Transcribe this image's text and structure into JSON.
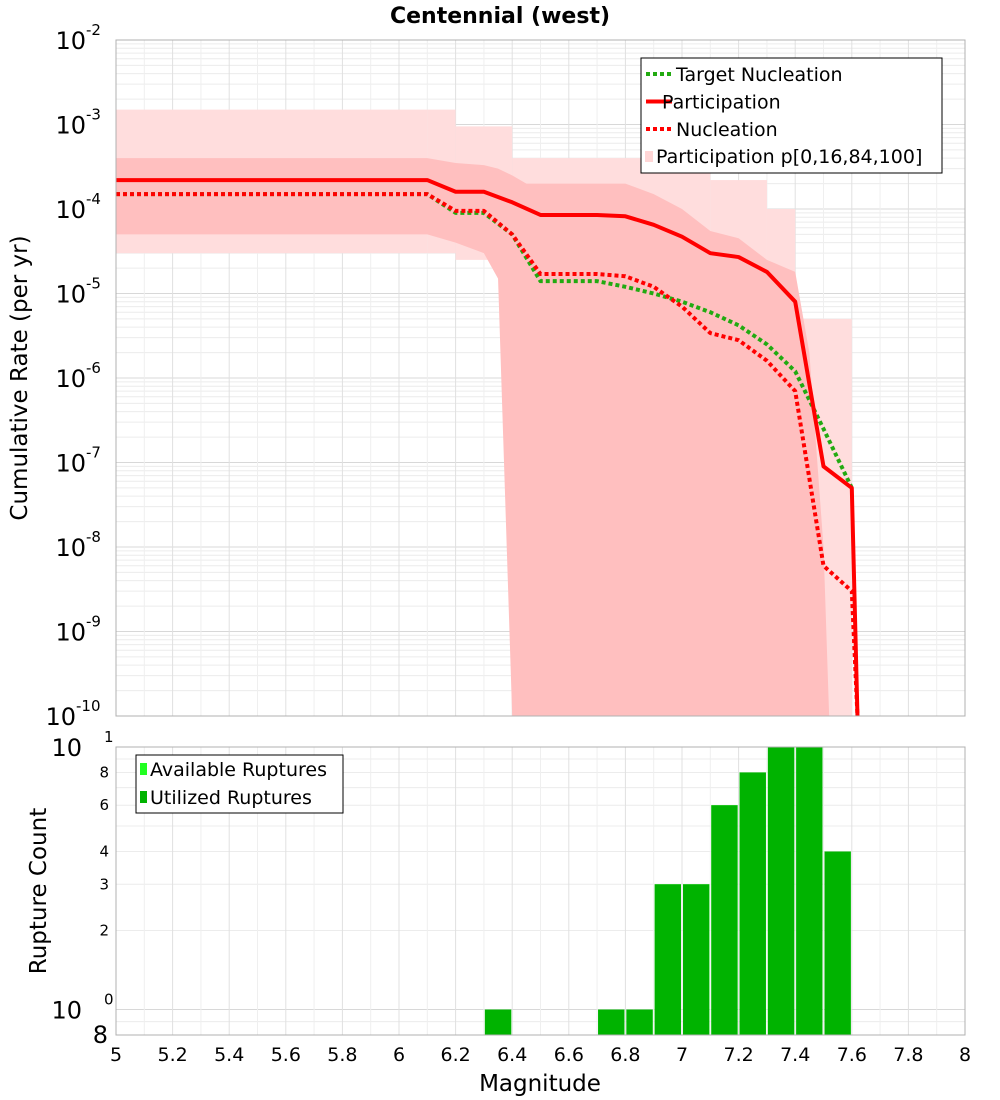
{
  "chart_data": [
    {
      "type": "line",
      "title": "Centennial (west)",
      "ylabel": "Cumulative Rate (per yr)",
      "xlabel": "",
      "xlim": [
        5,
        8
      ],
      "ylim": [
        1e-10,
        0.01
      ],
      "yscale": "log",
      "grid": true,
      "legend_position": "top-right",
      "y_tick_exponents": [
        "-10",
        "-9",
        "-8",
        "-7",
        "-6",
        "-5",
        "-4",
        "-3",
        "-2"
      ],
      "y_tick_base": "10",
      "x": [
        5.0,
        5.1,
        5.2,
        5.3,
        5.4,
        5.5,
        5.6,
        5.7,
        5.8,
        5.9,
        6.0,
        6.1,
        6.2,
        6.3,
        6.4,
        6.5,
        6.6,
        6.7,
        6.8,
        6.9,
        7.0,
        7.1,
        7.2,
        7.3,
        7.4,
        7.5,
        7.6,
        7.62
      ],
      "series": [
        {
          "name": "Target Nucleation",
          "style": "dotted",
          "color": "#22aa11",
          "values": [
            0.00015,
            0.00015,
            0.00015,
            0.00015,
            0.00015,
            0.00015,
            0.00015,
            0.00015,
            0.00015,
            0.00015,
            0.00015,
            0.00015,
            9e-05,
            9e-05,
            5e-05,
            1.4e-05,
            1.4e-05,
            1.4e-05,
            1.2e-05,
            1e-05,
            8e-06,
            6e-06,
            4.2e-06,
            2.5e-06,
            1.2e-06,
            2.5e-07,
            5e-08,
            null
          ]
        },
        {
          "name": "Participation",
          "style": "solid",
          "color": "#ff0000",
          "values": [
            0.00022,
            0.00022,
            0.00022,
            0.00022,
            0.00022,
            0.00022,
            0.00022,
            0.00022,
            0.00022,
            0.00022,
            0.00022,
            0.00022,
            0.00016,
            0.00016,
            0.00012,
            8.5e-05,
            8.5e-05,
            8.5e-05,
            8.2e-05,
            6.5e-05,
            4.7e-05,
            3e-05,
            2.7e-05,
            1.8e-05,
            8e-06,
            9e-08,
            5e-08,
            1e-10
          ]
        },
        {
          "name": "Nucleation",
          "style": "dotted",
          "color": "#ff0000",
          "values": [
            0.00015,
            0.00015,
            0.00015,
            0.00015,
            0.00015,
            0.00015,
            0.00015,
            0.00015,
            0.00015,
            0.00015,
            0.00015,
            0.00015,
            9.5e-05,
            9.5e-05,
            5e-05,
            1.7e-05,
            1.7e-05,
            1.7e-05,
            1.6e-05,
            1.2e-05,
            7e-06,
            3.4e-06,
            2.8e-06,
            1.6e-06,
            7e-07,
            6e-09,
            3e-09,
            1e-10
          ]
        }
      ],
      "bands": {
        "name": "Participation p[0,16,84,100]",
        "outer_color": "#ffdddd",
        "inner_color": "#ffbfbf",
        "outer": [
          {
            "x0": 5.0,
            "x1": 6.1,
            "low": 3e-05,
            "high": 0.0015
          },
          {
            "x0": 6.1,
            "x1": 6.2,
            "low": 3e-05,
            "high": 0.0015
          },
          {
            "x0": 6.2,
            "x1": 6.4,
            "low": 2.5e-05,
            "high": 0.00095
          },
          {
            "x0": 6.4,
            "x1": 6.5,
            "low": 1e-10,
            "high": 0.0004
          },
          {
            "x0": 6.5,
            "x1": 7.1,
            "low": 1e-10,
            "high": 0.0004
          },
          {
            "x0": 7.1,
            "x1": 7.3,
            "low": 1e-10,
            "high": 0.00022
          },
          {
            "x0": 7.3,
            "x1": 7.4,
            "low": 1e-10,
            "high": 0.0001
          },
          {
            "x0": 7.4,
            "x1": 7.5,
            "low": 1e-10,
            "high": 5e-06
          },
          {
            "x0": 7.5,
            "x1": 7.6,
            "low": 1e-10,
            "high": 5e-06
          }
        ],
        "inner_x": [
          5.0,
          6.1,
          6.2,
          6.3,
          6.35,
          6.4,
          6.45,
          6.5,
          6.8,
          6.9,
          7.0,
          7.1,
          7.2,
          7.3,
          7.4,
          7.45,
          7.5,
          7.52
        ],
        "inner_high": [
          0.0004,
          0.0004,
          0.00035,
          0.00033,
          0.0003,
          0.00025,
          0.0002,
          0.0002,
          0.0002,
          0.00015,
          0.0001,
          5.5e-05,
          4.5e-05,
          2.5e-05,
          1.8e-05,
          2e-06,
          1e-08,
          1e-10
        ],
        "inner_low": [
          5e-05,
          5e-05,
          4e-05,
          3e-05,
          1.5e-05,
          1e-10,
          1e-10,
          1e-10,
          1e-10,
          1e-10,
          1e-10,
          1e-10,
          1e-10,
          1e-10,
          1e-10,
          1e-10,
          1e-10,
          1e-10
        ]
      }
    },
    {
      "type": "bar",
      "ylabel": "Rupture Count",
      "xlabel": "Magnitude",
      "xlim": [
        5,
        8
      ],
      "ylim": [
        0.8,
        10
      ],
      "yscale": "log",
      "grid": true,
      "legend_position": "top-left",
      "y_major_labels": [
        {
          "base": "10",
          "exp": "0",
          "value": 1
        },
        {
          "base": "10",
          "exp": "1",
          "value": 10
        }
      ],
      "y_minor_labels": [
        "8",
        "2",
        "3",
        "4",
        "6",
        "8"
      ],
      "y_minor_values": [
        0.8,
        2,
        3,
        4,
        6,
        8
      ],
      "x_tick_labels": [
        "5",
        "5.2",
        "5.4",
        "5.6",
        "5.8",
        "6",
        "6.2",
        "6.4",
        "6.6",
        "6.8",
        "7",
        "7.2",
        "7.4",
        "7.6",
        "7.8",
        "8"
      ],
      "x_tick_values": [
        5,
        5.2,
        5.4,
        5.6,
        5.8,
        6,
        6.2,
        6.4,
        6.6,
        6.8,
        7,
        7.2,
        7.4,
        7.6,
        7.8,
        8
      ],
      "bar_width": 0.1,
      "series": [
        {
          "name": "Available Ruptures",
          "color": "#22ff22",
          "x": [
            6.35,
            6.75,
            6.85,
            6.95,
            7.05,
            7.15,
            7.25,
            7.35,
            7.45,
            7.55
          ],
          "values": [
            1,
            1,
            1,
            3,
            3,
            6,
            8,
            10,
            10,
            4
          ]
        },
        {
          "name": "Utilized Ruptures",
          "color": "#00b300",
          "x": [
            6.35,
            6.75,
            6.85,
            6.95,
            7.05,
            7.15,
            7.25,
            7.35,
            7.45,
            7.55
          ],
          "values": [
            1,
            1,
            1,
            3,
            3,
            6,
            8,
            10,
            10,
            4
          ]
        }
      ]
    }
  ]
}
